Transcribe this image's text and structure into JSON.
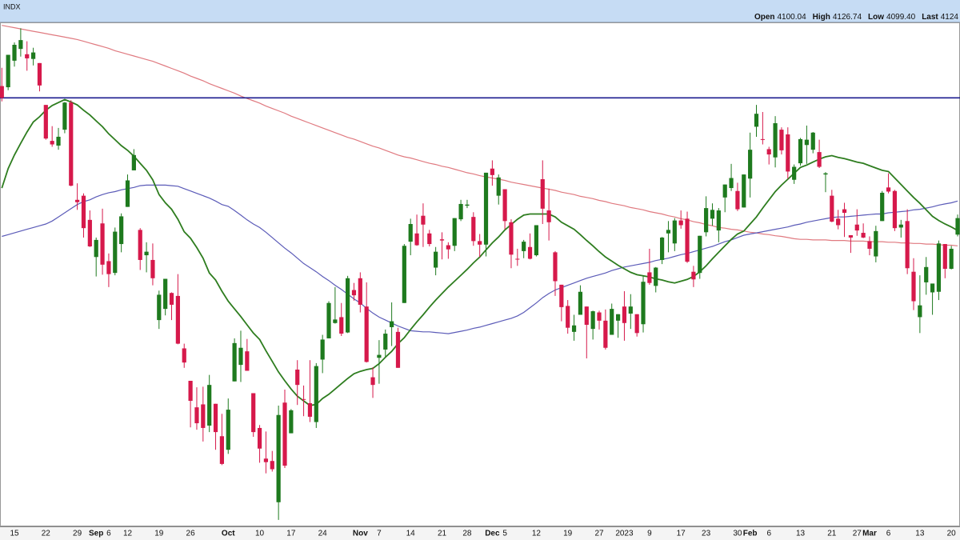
{
  "chart_data": {
    "type": "candlestick",
    "title": "INDX",
    "readout": [
      {
        "label": "Open",
        "value": "4100.04"
      },
      {
        "label": "High",
        "value": "4126.74"
      },
      {
        "label": "Low",
        "value": "4099.40"
      },
      {
        "label": "Last",
        "value": "4124"
      }
    ],
    "categories": [
      null,
      null,
      "15",
      null,
      null,
      null,
      null,
      "22",
      null,
      null,
      null,
      null,
      "29",
      null,
      null,
      "Sep",
      null,
      "6",
      null,
      null,
      "12",
      null,
      null,
      null,
      null,
      "19",
      null,
      null,
      null,
      null,
      "26",
      null,
      null,
      null,
      null,
      null,
      "Oct",
      null,
      null,
      null,
      null,
      "10",
      null,
      null,
      null,
      null,
      "17",
      null,
      null,
      null,
      null,
      "24",
      null,
      null,
      null,
      null,
      null,
      "Nov",
      null,
      null,
      "7",
      null,
      null,
      null,
      null,
      "14",
      null,
      null,
      null,
      null,
      "21",
      null,
      null,
      null,
      "28",
      null,
      null,
      null,
      "Dec",
      null,
      "5",
      null,
      null,
      null,
      null,
      "12",
      null,
      null,
      null,
      null,
      "19",
      null,
      null,
      null,
      null,
      "27",
      null,
      null,
      null,
      "2023",
      null,
      null,
      null,
      "9",
      null,
      null,
      null,
      null,
      "17",
      null,
      null,
      null,
      "23",
      null,
      null,
      null,
      null,
      "30",
      null,
      "Feb",
      null,
      null,
      "6",
      null,
      null,
      null,
      null,
      "13",
      null,
      null,
      null,
      null,
      "21",
      null,
      null,
      null,
      "27",
      null,
      "Mar",
      null,
      null,
      "6",
      null,
      null,
      null,
      null,
      "13",
      null,
      null,
      null,
      null,
      "20",
      null
    ],
    "open": [
      4227,
      4225,
      4270,
      4290,
      4281,
      4273,
      4266,
      4195,
      4134,
      4126,
      4153,
      4199,
      4034,
      4041,
      4000,
      3937,
      3994,
      3930,
      3910,
      3959,
      4022,
      4084,
      3983,
      3940,
      3932,
      3830,
      3849,
      3876,
      3871,
      3782,
      3727,
      3682,
      3687,
      3651,
      3688,
      3633,
      3610,
      3726,
      3754,
      3777,
      3706,
      3647,
      3595,
      3591,
      3521,
      3690,
      3638,
      3746,
      3696,
      3689,
      3657,
      3763,
      3799,
      3825,
      3835,
      3809,
      3881,
      3901,
      3853,
      3733,
      3766,
      3780,
      3818,
      3810,
      3859,
      3963,
      3977,
      4007,
      3977,
      3919,
      3967,
      3957,
      3956,
      4001,
      4024,
      4005,
      3964,
      3958,
      4087,
      4041,
      4052,
      3996,
      3934,
      3947,
      3954,
      3940,
      4069,
      4016,
      3945,
      3890,
      3854,
      3810,
      3839,
      3853,
      3815,
      3843,
      3829,
      3805,
      3829,
      3853,
      3841,
      3840,
      3823,
      3911,
      3888,
      3932,
      3977,
      3960,
      3999,
      4002,
      3912,
      3910,
      3979,
      4002,
      3982,
      4038,
      4054,
      4049,
      4021,
      4070,
      4158,
      4137,
      4120,
      4106,
      4153,
      4145,
      4068,
      4096,
      4127,
      4119,
      4115,
      4077,
      4041,
      4002,
      4018,
      3974,
      3992,
      3978,
      3964,
      3938,
      3998,
      4055,
      4049,
      3987,
      3998,
      3912,
      3835,
      3894,
      3877,
      3878,
      3959,
      3917,
      3975
    ],
    "high": [
      4258,
      4280,
      4301,
      4325,
      4303,
      4292,
      4266,
      4195,
      4159,
      4156,
      4200,
      4203,
      4062,
      4045,
      4016,
      3970,
      4019,
      3943,
      3987,
      4011,
      4077,
      4120,
      3986,
      3962,
      3960,
      3880,
      3900,
      3877,
      3908,
      3790,
      3727,
      3716,
      3717,
      3737,
      3688,
      3671,
      3697,
      3799,
      3812,
      3798,
      3706,
      3652,
      3641,
      3608,
      3685,
      3712,
      3679,
      3762,
      3719,
      3762,
      3757,
      3805,
      3862,
      3886,
      3859,
      3905,
      3893,
      3911,
      3894,
      3750,
      3796,
      3814,
      3860,
      3817,
      3959,
      4002,
      4009,
      4028,
      3983,
      3954,
      3979,
      3962,
      4003,
      4034,
      4034,
      4013,
      3976,
      4080,
      4101,
      4077,
      4052,
      4001,
      3951,
      3966,
      3977,
      3991,
      4101,
      4053,
      3947,
      3890,
      3864,
      3839,
      3889,
      3853,
      3846,
      3846,
      3848,
      3858,
      3840,
      3879,
      3874,
      3840,
      3906,
      3951,
      3920,
      3971,
      3998,
      4003,
      4016,
      4014,
      3922,
      3973,
      4040,
      4028,
      4020,
      4060,
      4095,
      4063,
      4077,
      4148,
      4195,
      4183,
      4124,
      4176,
      4157,
      4157,
      4094,
      4139,
      4160,
      4149,
      4136,
      4081,
      4051,
      4017,
      4029,
      3974,
      4018,
      3994,
      3972,
      3990,
      4049,
      4079,
      4051,
      4000,
      4018,
      3935,
      3906,
      3937,
      3891,
      3965,
      3959,
      3956,
      4009
    ],
    "low": [
      4201,
      4220,
      4260,
      4277,
      4253,
      4262,
      4218,
      4136,
      4124,
      4119,
      4147,
      4057,
      4017,
      3970,
      3954,
      3904,
      3907,
      3886,
      3906,
      3945,
      4022,
      4084,
      3915,
      3911,
      3889,
      3815,
      3838,
      3830,
      3789,
      3749,
      3648,
      3644,
      3624,
      3640,
      3610,
      3584,
      3603,
      3726,
      3725,
      3744,
      3632,
      3588,
      3570,
      3573,
      3491,
      3579,
      3638,
      3686,
      3667,
      3657,
      3647,
      3740,
      3799,
      3824,
      3803,
      3808,
      3863,
      3843,
      3758,
      3698,
      3722,
      3768,
      3786,
      3749,
      3859,
      3940,
      3956,
      3954,
      3955,
      3906,
      3933,
      3934,
      3947,
      3998,
      4020,
      3956,
      3937,
      3938,
      4058,
      4026,
      3984,
      3918,
      3922,
      3935,
      3933,
      3938,
      3993,
      3965,
      3871,
      3828,
      3807,
      3795,
      3839,
      3765,
      3797,
      3814,
      3780,
      3805,
      3800,
      3795,
      3815,
      3802,
      3809,
      3890,
      3877,
      3925,
      3945,
      3947,
      3985,
      3927,
      3886,
      3900,
      3972,
      3990,
      3962,
      4013,
      4049,
      4015,
      4021,
      4038,
      4141,
      4128,
      4094,
      4089,
      4111,
      4070,
      4061,
      4092,
      4095,
      4113,
      4088,
      4047,
      3996,
      3984,
      3971,
      3944,
      3973,
      3969,
      3940,
      3928,
      3998,
      4045,
      3981,
      3970,
      3908,
      3847,
      3808,
      3873,
      3839,
      3864,
      3901,
      3916,
      3972
    ],
    "close": [
      4207,
      4280,
      4297,
      4305,
      4274,
      4284,
      4228,
      4138,
      4128,
      4141,
      4199,
      4058,
      4030,
      3986,
      3955,
      3966,
      3924,
      3908,
      3980,
      4006,
      4067,
      4110,
      3932,
      3946,
      3901,
      3873,
      3900,
      3856,
      3790,
      3758,
      3693,
      3655,
      3647,
      3720,
      3640,
      3586,
      3678,
      3791,
      3783,
      3744,
      3640,
      3612,
      3589,
      3577,
      3669,
      3583,
      3677,
      3720,
      3695,
      3666,
      3752,
      3797,
      3859,
      3831,
      3807,
      3901,
      3872,
      3856,
      3759,
      3720,
      3771,
      3807,
      3828,
      3749,
      3956,
      3993,
      3957,
      3992,
      3959,
      3946,
      3965,
      3950,
      4003,
      4027,
      4026,
      3964,
      3958,
      4080,
      4076,
      4072,
      3998,
      3941,
      3933,
      3963,
      3934,
      3991,
      4019,
      3996,
      3896,
      3852,
      3817,
      3821,
      3878,
      3822,
      3845,
      3829,
      3783,
      3849,
      3840,
      3825,
      3853,
      3808,
      3895,
      3893,
      3919,
      3970,
      3983,
      3999,
      3991,
      3929,
      3899,
      3973,
      4020,
      4017,
      4016,
      4060,
      4071,
      4018,
      4077,
      4119,
      4180,
      4136,
      4111,
      4164,
      4118,
      4082,
      4090,
      4137,
      4136,
      4148,
      4090,
      4079,
      3997,
      3991,
      4012,
      3970,
      3982,
      3970,
      3951,
      3981,
      4046,
      4048,
      3986,
      3992,
      3918,
      3862,
      3855,
      3920,
      3892,
      3960,
      3917,
      3951,
      4003
    ],
    "up_color": "#1e7a1e",
    "down_color": "#d6194b",
    "series": [
      {
        "color": "#e07a80",
        "values": [
          4330,
          4328,
          4326,
          4324,
          4322,
          4320,
          4318,
          4316,
          4314,
          4312,
          4310,
          4308,
          4306,
          4303,
          4300,
          4297,
          4294,
          4291,
          4287,
          4284,
          4281,
          4278,
          4275,
          4272,
          4269,
          4265,
          4261,
          4257,
          4253,
          4249,
          4244,
          4240,
          4236,
          4231,
          4227,
          4223,
          4219,
          4215,
          4210,
          4206,
          4202,
          4198,
          4193,
          4189,
          4185,
          4181,
          4176,
          4172,
          4168,
          4164,
          4160,
          4156,
          4152,
          4148,
          4144,
          4140,
          4137,
          4133,
          4129,
          4125,
          4122,
          4118,
          4114,
          4110,
          4107,
          4105,
          4102,
          4099,
          4096,
          4094,
          4091,
          4089,
          4086,
          4083,
          4080,
          4078,
          4075,
          4073,
          4071,
          4069,
          4067,
          4064,
          4062,
          4060,
          4058,
          4056,
          4054,
          4052,
          4050,
          4047,
          4045,
          4043,
          4040,
          4038,
          4036,
          4033,
          4031,
          4028,
          4026,
          4024,
          4021,
          4019,
          4017,
          4014,
          4012,
          4010,
          4007,
          4005,
          4002,
          4000,
          3997,
          3995,
          3992,
          3990,
          3987,
          3986,
          3984,
          3983,
          3981,
          3979,
          3978,
          3976,
          3975,
          3973,
          3972,
          3970,
          3968,
          3967,
          3967,
          3966,
          3966,
          3966,
          3965,
          3965,
          3965,
          3964,
          3964,
          3964,
          3963,
          3963,
          3963,
          3962,
          3962,
          3961,
          3961,
          3960,
          3960,
          3959,
          3959,
          3958,
          3957,
          3957,
          3956
        ]
      },
      {
        "color": "#5b5bb8",
        "values": [
          3972,
          3975,
          3978,
          3981,
          3984,
          3987,
          3990,
          3993,
          3998,
          4005,
          4012,
          4019,
          4026,
          4031,
          4034,
          4039,
          4043,
          4046,
          4048,
          4051,
          4053,
          4055,
          4058,
          4059,
          4059,
          4059,
          4059,
          4058,
          4057,
          4053,
          4049,
          4045,
          4041,
          4037,
          4032,
          4026,
          4023,
          4016,
          4008,
          4000,
          3993,
          3987,
          3979,
          3970,
          3961,
          3952,
          3944,
          3935,
          3926,
          3919,
          3912,
          3904,
          3897,
          3889,
          3882,
          3874,
          3866,
          3859,
          3850,
          3842,
          3835,
          3830,
          3825,
          3820,
          3816,
          3812,
          3811,
          3810,
          3810,
          3809,
          3808,
          3807,
          3809,
          3811,
          3813,
          3816,
          3818,
          3821,
          3824,
          3827,
          3830,
          3833,
          3837,
          3843,
          3851,
          3859,
          3868,
          3875,
          3881,
          3885,
          3889,
          3893,
          3897,
          3901,
          3904,
          3907,
          3910,
          3914,
          3917,
          3920,
          3922,
          3924,
          3926,
          3928,
          3931,
          3933,
          3935,
          3938,
          3941,
          3943,
          3946,
          3949,
          3952,
          3955,
          3959,
          3963,
          3966,
          3970,
          3974,
          3976,
          3978,
          3980,
          3982,
          3984,
          3986,
          3988,
          3991,
          3993,
          3996,
          3998,
          4000,
          4002,
          4004,
          4005,
          4005,
          4006,
          4007,
          4008,
          4009,
          4010,
          4010,
          4012,
          4013,
          4014,
          4015,
          4017,
          4018,
          4020,
          4022,
          4025,
          4027,
          4029,
          4032
        ]
      },
      {
        "color": "#2e7d1f",
        "values": [
          4054,
          4087,
          4110,
          4130,
          4149,
          4166,
          4175,
          4186,
          4194,
          4199,
          4204,
          4200,
          4195,
          4186,
          4178,
          4168,
          4158,
          4146,
          4136,
          4126,
          4118,
          4108,
          4096,
          4084,
          4068,
          4043,
          4029,
          4018,
          4001,
          3980,
          3969,
          3953,
          3935,
          3910,
          3898,
          3879,
          3862,
          3849,
          3836,
          3822,
          3808,
          3797,
          3778,
          3760,
          3742,
          3727,
          3713,
          3701,
          3693,
          3685,
          3687,
          3697,
          3704,
          3713,
          3722,
          3731,
          3739,
          3743,
          3746,
          3748,
          3756,
          3767,
          3777,
          3790,
          3800,
          3814,
          3827,
          3839,
          3852,
          3864,
          3875,
          3886,
          3896,
          3906,
          3916,
          3927,
          3937,
          3949,
          3961,
          3971,
          3983,
          3992,
          4001,
          4008,
          4010,
          4010,
          4010,
          4010,
          4005,
          3996,
          3990,
          3984,
          3975,
          3965,
          3956,
          3946,
          3937,
          3930,
          3923,
          3917,
          3911,
          3907,
          3905,
          3903,
          3900,
          3898,
          3895,
          3893,
          3896,
          3899,
          3904,
          3912,
          3922,
          3934,
          3945,
          3956,
          3967,
          3976,
          3981,
          3993,
          4005,
          4020,
          4034,
          4048,
          4059,
          4069,
          4079,
          4089,
          4093,
          4098,
          4103,
          4107,
          4109,
          4106,
          4104,
          4101,
          4098,
          4096,
          4092,
          4088,
          4084,
          4082,
          4071,
          4060,
          4049,
          4038,
          4028,
          4017,
          4006,
          3999,
          3993,
          3988,
          3982
        ]
      }
    ],
    "hlines": [
      {
        "value": 4207,
        "color": "#1c1c8f"
      }
    ],
    "ylim": [
      3480,
      4335
    ]
  }
}
